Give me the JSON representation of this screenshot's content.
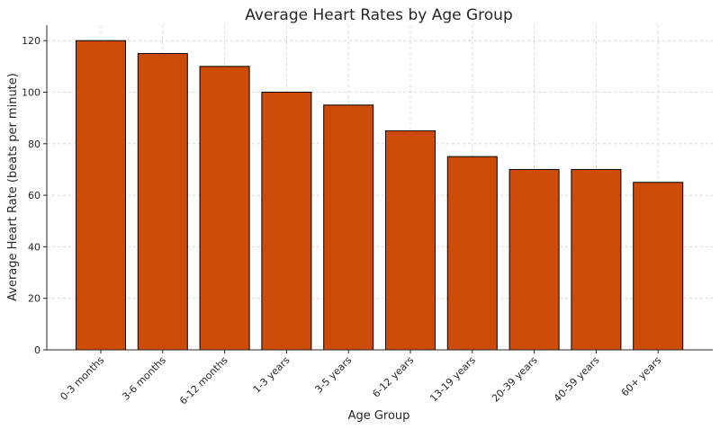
{
  "chart_data": {
    "type": "bar",
    "title": "Average Heart Rates by Age Group",
    "xlabel": "Age Group",
    "ylabel": "Average Heart Rate (beats per minute)",
    "categories": [
      "0-3 months",
      "3-6 months",
      "6-12 months",
      "1-3 years",
      "3-5 years",
      "6-12 years",
      "13-19 years",
      "20-39 years",
      "40-59 years",
      "60+ years"
    ],
    "values": [
      120,
      115,
      110,
      100,
      95,
      85,
      75,
      70,
      70,
      65
    ],
    "ylim": [
      0,
      126
    ],
    "yticks": [
      0,
      20,
      40,
      60,
      80,
      100,
      120
    ],
    "grid": true,
    "colors": {
      "bar_fill": "#cc4c07",
      "bar_edge": "#000000"
    }
  }
}
